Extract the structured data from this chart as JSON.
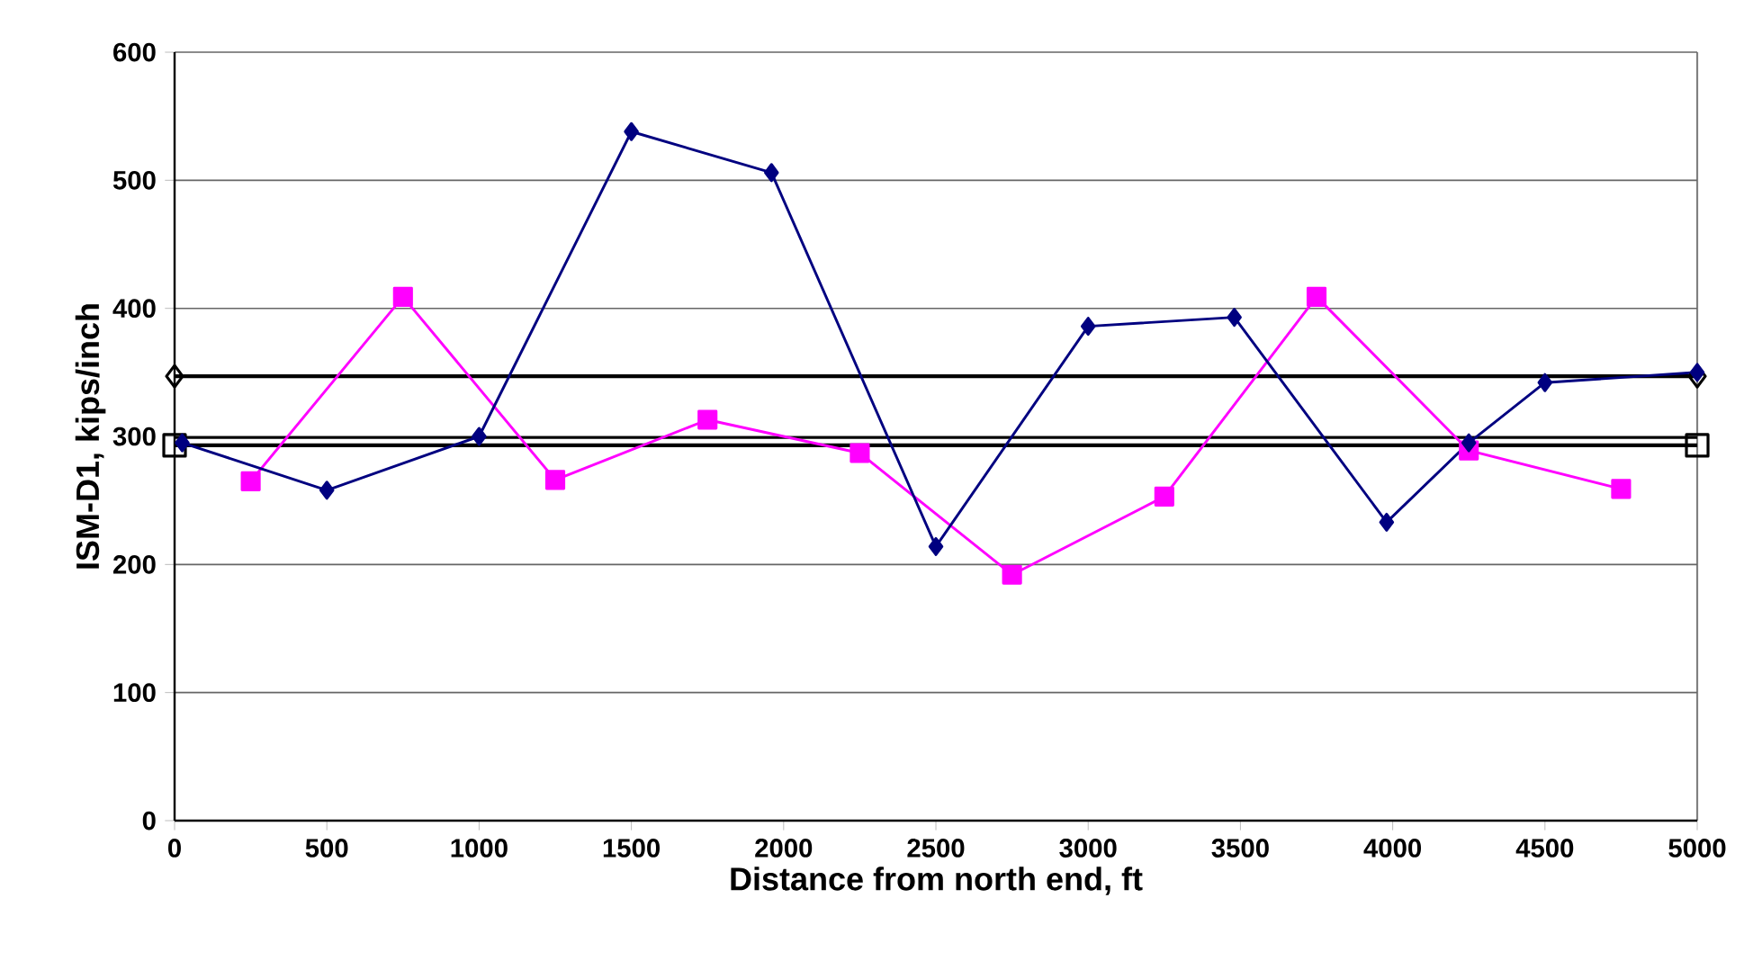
{
  "chart_data": {
    "type": "line",
    "xlabel": "Distance from north end, ft",
    "ylabel": "ISM-D1, kips/inch",
    "xlim": [
      0,
      5000
    ],
    "xticks": [
      0,
      500,
      1000,
      1500,
      2000,
      2500,
      3000,
      3500,
      4000,
      4500,
      5000
    ],
    "ylim": [
      0,
      600
    ],
    "yticks": [
      0,
      100,
      200,
      300,
      400,
      500,
      600
    ],
    "grid": "y",
    "line_style": "solid",
    "series": [
      {
        "color": "#000080",
        "marker": "diamond",
        "x": [
          25,
          500,
          1000,
          1500,
          1960,
          2500,
          3000,
          3480,
          3980,
          4250,
          4500,
          5000
        ],
        "values": [
          295,
          258,
          300,
          538,
          506,
          214,
          386,
          393,
          233,
          295,
          342,
          350
        ]
      },
      {
        "color": "#ff00ff",
        "marker": "square",
        "x": [
          250,
          750,
          1250,
          1750,
          2250,
          2750,
          3250,
          3750,
          4250,
          4750
        ],
        "values": [
          265,
          409,
          266,
          313,
          287,
          192,
          253,
          409,
          289,
          259
        ]
      },
      {
        "type": "line",
        "color": "#000000",
        "marker": "diamond",
        "x": [
          0,
          5000
        ],
        "values": [
          347,
          347
        ]
      },
      {
        "type": "line",
        "color": "#000000",
        "marker": "square",
        "x": [
          0,
          5000
        ],
        "values": [
          293,
          293
        ]
      }
    ],
    "ref_lines": [
      {
        "axis": "y",
        "value": 299,
        "color": "#000000"
      }
    ]
  }
}
